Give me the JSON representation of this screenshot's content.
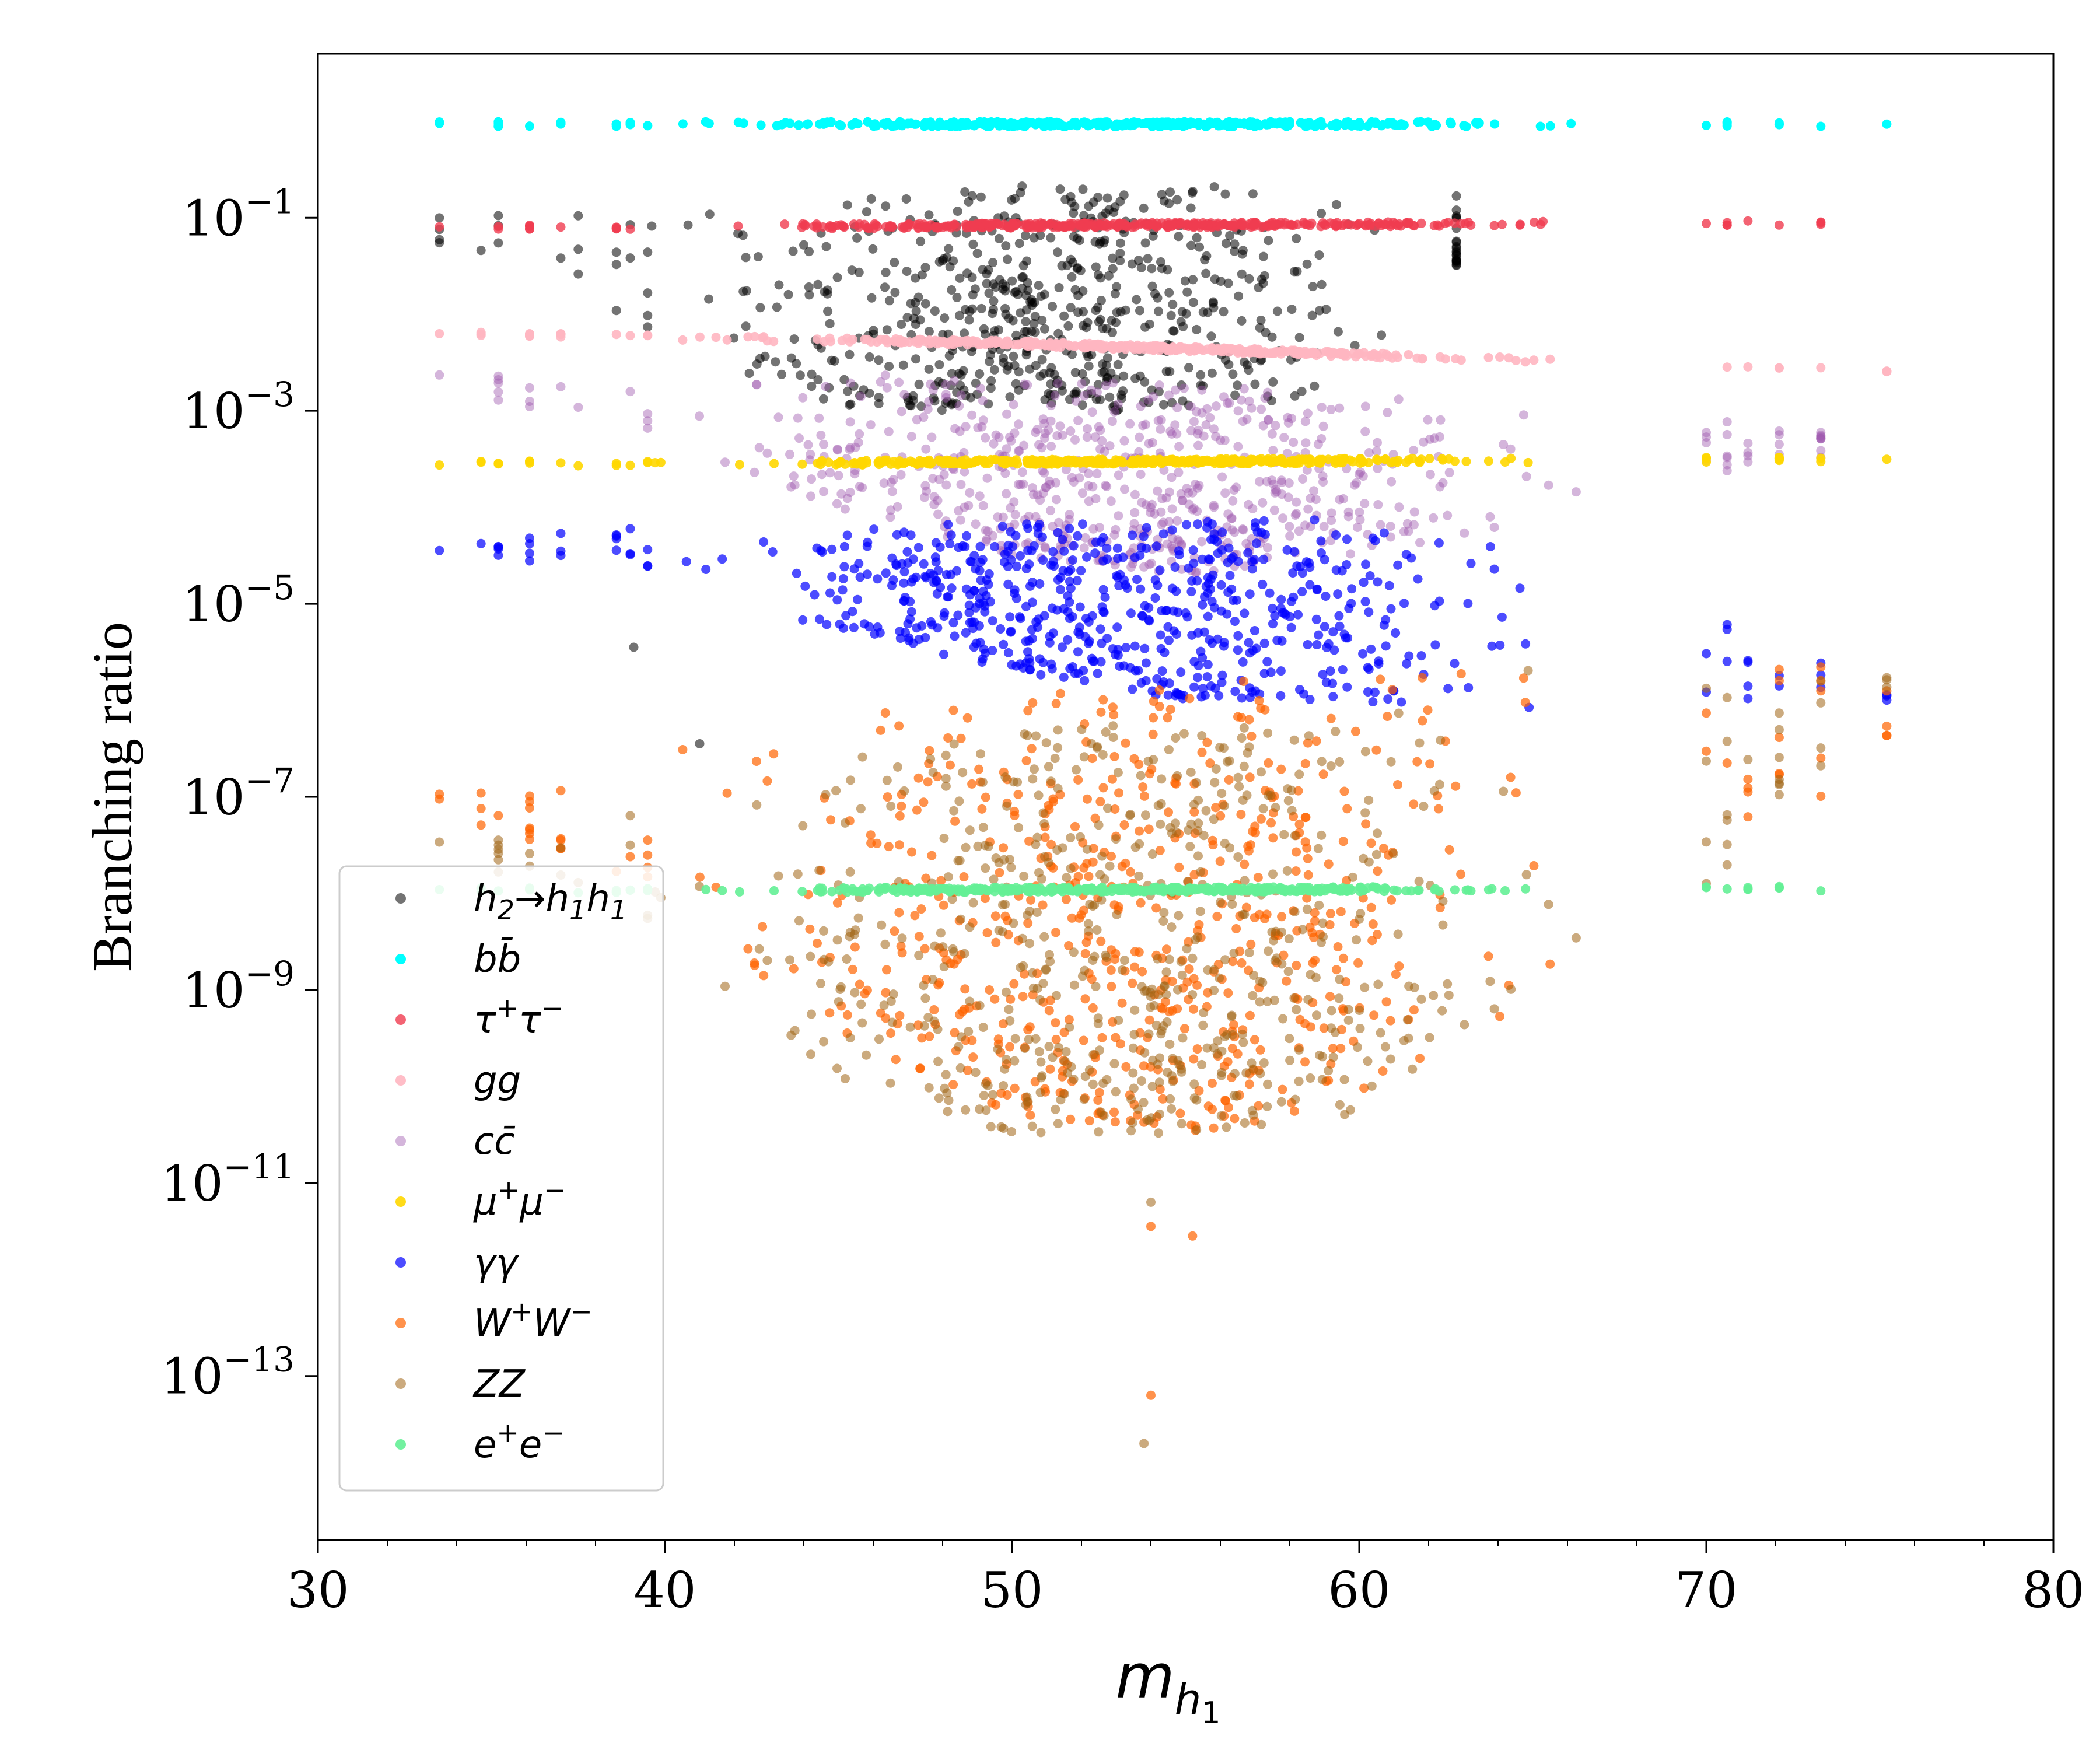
{
  "chart_data": {
    "type": "scatter",
    "title": "",
    "xlabel": "m",
    "xlabel_subscript": "h",
    "xlabel_subsubscript": "1",
    "ylabel": "Branching ratio",
    "xlim": [
      30,
      80
    ],
    "ylim_log10": [
      -14.7,
      0.7
    ],
    "yscale": "log",
    "xticks": [
      30,
      40,
      50,
      60,
      70,
      80
    ],
    "xtick_labels": [
      "30",
      "40",
      "50",
      "60",
      "70",
      "80"
    ],
    "yticks_log10": [
      -1,
      -3,
      -5,
      -7,
      -9,
      -11,
      -13
    ],
    "ytick_base": "10",
    "ytick_exponents": [
      "−1",
      "−3",
      "−5",
      "−7",
      "−9",
      "−11",
      "−13"
    ],
    "grid": false,
    "legend_position": "lower-left",
    "series": [
      {
        "name": "h₂→h₁h₁",
        "color": "#000000",
        "alpha": 0.55,
        "band": {
          "x": [
            33.5,
            62.8
          ],
          "log10": [
            [
              33.5,
              -0.9,
              -1.3
            ],
            [
              40.0,
              -0.9,
              -2.3
            ],
            [
              45.0,
              -0.7,
              -3.0
            ],
            [
              50.0,
              -0.65,
              -3.0
            ],
            [
              55.0,
              -0.65,
              -3.0
            ],
            [
              60.0,
              -0.65,
              -2.8
            ],
            [
              62.8,
              -0.65,
              -1.5
            ]
          ]
        },
        "points": [
          [
            39.1,
            -5.45
          ],
          [
            41.0,
            -6.45
          ]
        ]
      },
      {
        "name": "b̅b",
        "label_html": "b<tspan>b̄</tspan>",
        "color": "#00ffff",
        "alpha": 1.0,
        "line": [
          [
            33.5,
            -0.03
          ],
          [
            75.2,
            -0.03
          ]
        ]
      },
      {
        "name": "τ⁺τ⁻",
        "color": "#f03c50",
        "alpha": 0.8,
        "line": [
          [
            33.5,
            -1.1
          ],
          [
            75.2,
            -1.05
          ]
        ]
      },
      {
        "name": "gg",
        "color": "#ffb6c1",
        "alpha": 0.9,
        "line": [
          [
            33.5,
            -2.2
          ],
          [
            50.0,
            -2.3
          ],
          [
            75.2,
            -2.6
          ]
        ]
      },
      {
        "name": "c̅c",
        "color": "#a05aaf",
        "alpha": 0.45,
        "band": {
          "x": [
            33.5,
            73.3
          ],
          "log10": [
            [
              33.5,
              -2.5,
              -2.8
            ],
            [
              40.0,
              -2.6,
              -3.3
            ],
            [
              45.0,
              -2.6,
              -4.0
            ],
            [
              50.0,
              -2.7,
              -4.5
            ],
            [
              55.0,
              -2.7,
              -4.7
            ],
            [
              60.0,
              -2.8,
              -4.5
            ],
            [
              65.0,
              -2.8,
              -4.2
            ],
            [
              67.5,
              -2.9,
              -3.8
            ],
            [
              73.3,
              -3.2,
              -3.5
            ]
          ]
        }
      },
      {
        "name": "μ⁺μ⁻",
        "color": "#ffd700",
        "alpha": 0.9,
        "line": [
          [
            33.5,
            -3.55
          ],
          [
            75.2,
            -3.5
          ]
        ]
      },
      {
        "name": "γγ",
        "color": "#0000ff",
        "alpha": 0.7,
        "band": {
          "x": [
            33.5,
            75.2
          ],
          "log10": [
            [
              33.5,
              -4.3,
              -4.5
            ],
            [
              40.0,
              -4.2,
              -4.7
            ],
            [
              45.0,
              -4.2,
              -5.3
            ],
            [
              50.0,
              -4.1,
              -5.7
            ],
            [
              55.0,
              -4.1,
              -6.0
            ],
            [
              60.0,
              -4.1,
              -6.0
            ],
            [
              65.0,
              -4.2,
              -6.2
            ],
            [
              70.0,
              -5.0,
              -6.0
            ],
            [
              75.2,
              -5.9,
              -6.1
            ]
          ]
        }
      },
      {
        "name": "W⁺W⁻",
        "color": "#ff6400",
        "alpha": 0.7,
        "band": {
          "x": [
            33.5,
            75.2
          ],
          "log10": [
            [
              33.5,
              -6.8,
              -7.2
            ],
            [
              40.0,
              -6.5,
              -8.0
            ],
            [
              45.0,
              -6.2,
              -9.5
            ],
            [
              50.0,
              -5.9,
              -10.3
            ],
            [
              55.0,
              -5.8,
              -10.5
            ],
            [
              60.0,
              -5.8,
              -10.2
            ],
            [
              63.0,
              -5.0,
              -9.5
            ],
            [
              66.0,
              -5.1,
              -9.0
            ],
            [
              70.0,
              -5.4,
              -7.8
            ],
            [
              75.2,
              -5.6,
              -6.6
            ]
          ]
        },
        "points": [
          [
            54.0,
            -11.45
          ],
          [
            55.2,
            -11.55
          ],
          [
            54.0,
            -13.2
          ]
        ]
      },
      {
        "name": "ZZ",
        "color": "#a06414",
        "alpha": 0.55,
        "band": {
          "x": [
            33.5,
            75.2
          ],
          "log10": [
            [
              33.5,
              -7.4,
              -7.6
            ],
            [
              40.0,
              -7.0,
              -8.5
            ],
            [
              45.0,
              -6.6,
              -9.9
            ],
            [
              50.0,
              -6.3,
              -10.5
            ],
            [
              55.0,
              -6.2,
              -10.5
            ],
            [
              60.0,
              -6.2,
              -10.3
            ],
            [
              63.0,
              -5.5,
              -9.5
            ],
            [
              66.0,
              -5.5,
              -9.0
            ],
            [
              70.0,
              -5.8,
              -8.0
            ],
            [
              75.2,
              -5.7,
              -6.0
            ]
          ]
        },
        "points": [
          [
            54.0,
            -11.2
          ],
          [
            53.8,
            -13.7
          ]
        ]
      },
      {
        "name": "e⁺e⁻",
        "color": "#64f096",
        "alpha": 0.9,
        "line": [
          [
            33.5,
            -7.97
          ],
          [
            75.2,
            -7.95
          ]
        ]
      }
    ],
    "legend_labels": [
      [
        "h",
        "2",
        "→",
        "h",
        "1",
        "h",
        "1"
      ],
      [
        "b",
        "b̄"
      ],
      [
        "τ",
        "+",
        "τ",
        "−"
      ],
      [
        "gg"
      ],
      [
        "c",
        "c̄"
      ],
      [
        "μ",
        "+",
        "μ",
        "−"
      ],
      [
        "γγ"
      ],
      [
        "W",
        "+",
        "W",
        "−"
      ],
      [
        "ZZ"
      ],
      [
        "e",
        "+",
        "e",
        "−"
      ]
    ]
  }
}
